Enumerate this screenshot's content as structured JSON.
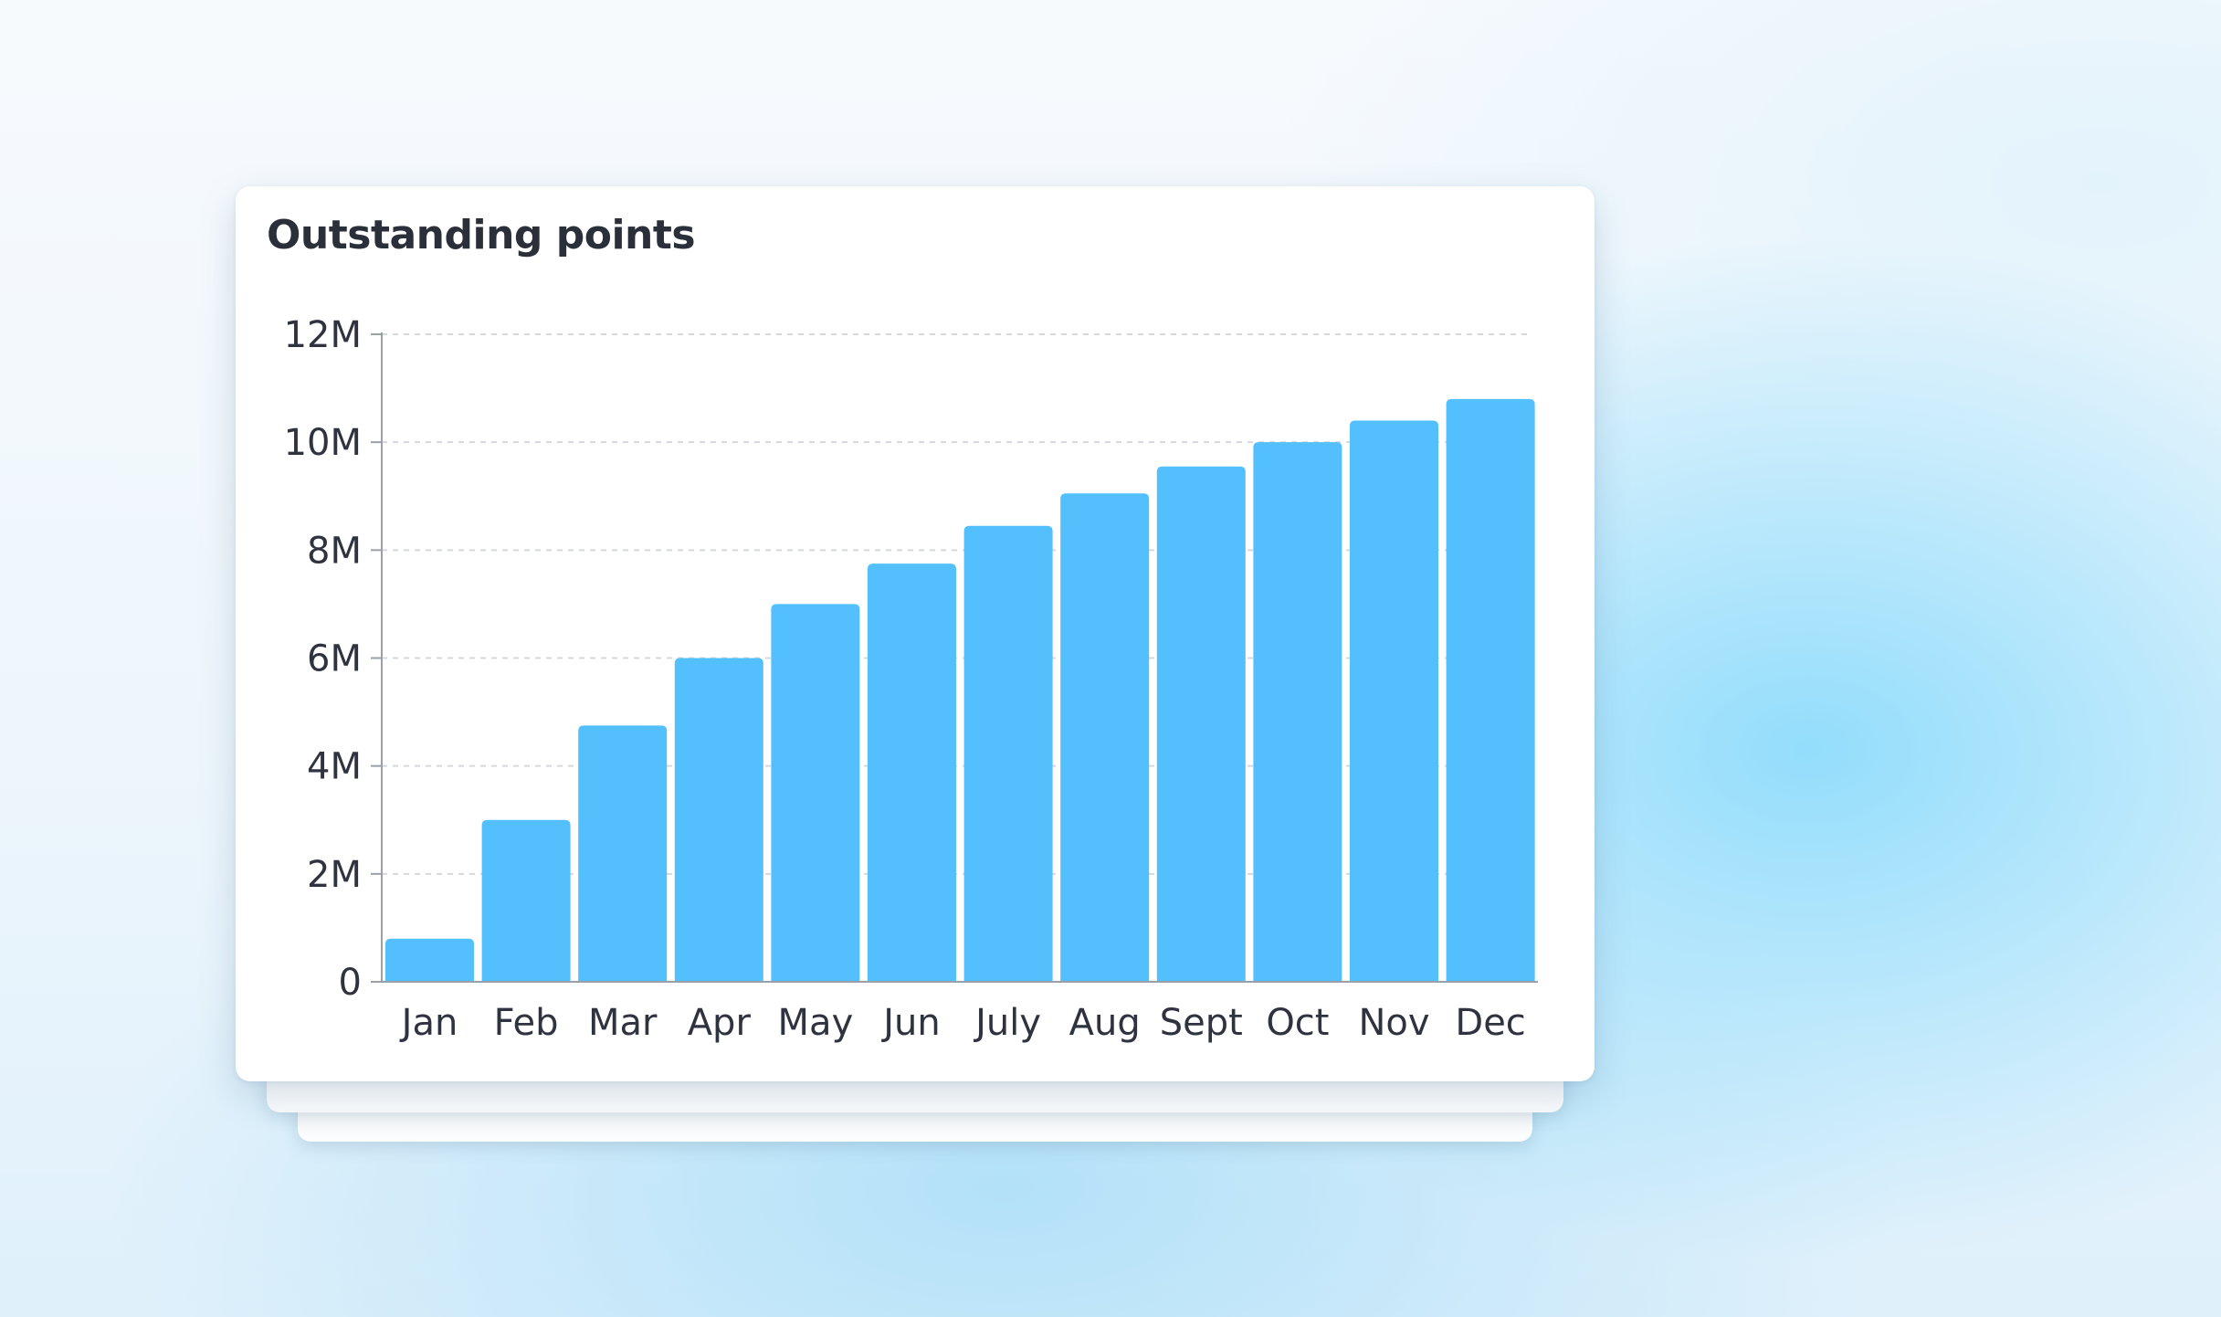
{
  "chart_data": {
    "type": "bar",
    "title": "Outstanding points",
    "xlabel": "",
    "ylabel": "",
    "categories": [
      "Jan",
      "Feb",
      "Mar",
      "Apr",
      "May",
      "Jun",
      "July",
      "Aug",
      "Sept",
      "Oct",
      "Nov",
      "Dec"
    ],
    "values": [
      800000,
      3000000,
      4750000,
      6000000,
      7000000,
      7750000,
      8450000,
      9050000,
      9550000,
      10000000,
      10400000,
      10800000
    ],
    "ylim": [
      0,
      12000000
    ],
    "yticks": [
      0,
      2000000,
      4000000,
      6000000,
      8000000,
      10000000,
      12000000
    ],
    "ytick_labels": [
      "0",
      "2M",
      "4M",
      "6M",
      "8M",
      "10M",
      "12M"
    ],
    "grid": true,
    "bar_color": "#53bffc",
    "axis_color": "#9aa0a8",
    "grid_color": "#d5d8dc"
  }
}
